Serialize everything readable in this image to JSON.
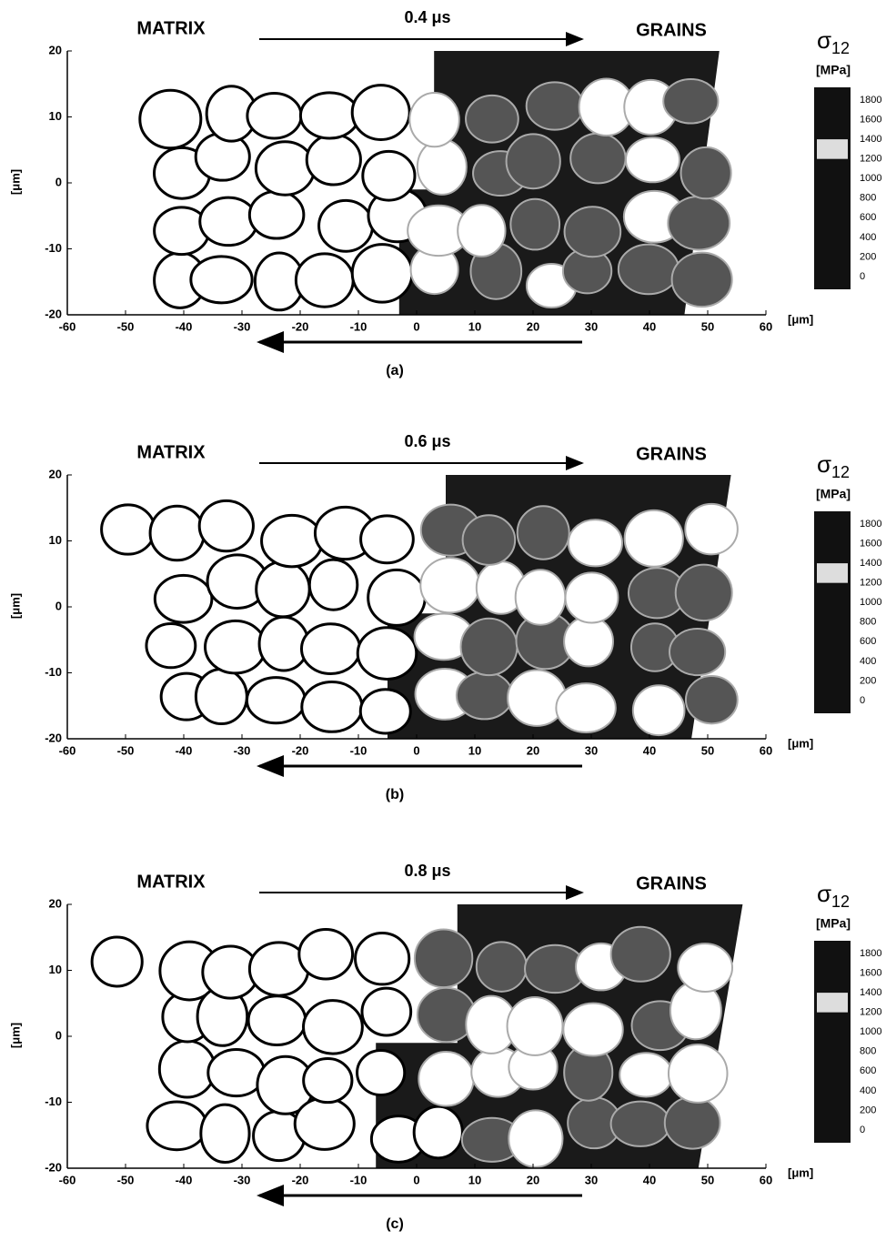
{
  "panels": [
    {
      "time": "0.4 μs",
      "left_label": "MATRIX",
      "right_label": "GRAINS",
      "y_axis_label": "[μm]",
      "x_axis_unit": "[μm]",
      "xticks": [
        -60,
        -50,
        -40,
        -30,
        -20,
        -10,
        0,
        10,
        20,
        30,
        40,
        50,
        60
      ],
      "yticks": [
        20,
        10,
        0,
        -10,
        -20
      ],
      "colorbar_symbol": "σ",
      "colorbar_subscript": "12",
      "colorbar_unit": "[MPa]",
      "colorbar_ticks": [
        1800,
        1600,
        1400,
        1200,
        1000,
        800,
        600,
        400,
        200,
        0
      ],
      "caption": "(a)"
    },
    {
      "time": "0.6 μs",
      "left_label": "MATRIX",
      "right_label": "GRAINS",
      "y_axis_label": "[μm]",
      "x_axis_unit": "[μm]",
      "xticks": [
        -60,
        -50,
        -40,
        -30,
        -20,
        -10,
        0,
        10,
        20,
        30,
        40,
        50,
        60
      ],
      "yticks": [
        20,
        10,
        0,
        -10,
        -20
      ],
      "colorbar_symbol": "σ",
      "colorbar_subscript": "12",
      "colorbar_unit": "[MPa]",
      "colorbar_ticks": [
        1800,
        1600,
        1400,
        1200,
        1000,
        800,
        600,
        400,
        200,
        0
      ],
      "caption": "(b)"
    },
    {
      "time": "0.8 μs",
      "left_label": "MATRIX",
      "right_label": "GRAINS",
      "y_axis_label": "[μm]",
      "x_axis_unit": "[μm]",
      "xticks": [
        -60,
        -50,
        -40,
        -30,
        -20,
        -10,
        0,
        10,
        20,
        30,
        40,
        50,
        60
      ],
      "yticks": [
        20,
        10,
        0,
        -10,
        -20
      ],
      "colorbar_symbol": "σ",
      "colorbar_subscript": "12",
      "colorbar_unit": "[MPa]",
      "colorbar_ticks": [
        1800,
        1600,
        1400,
        1200,
        1000,
        800,
        600,
        400,
        200,
        0
      ],
      "caption": "(c)"
    }
  ]
}
